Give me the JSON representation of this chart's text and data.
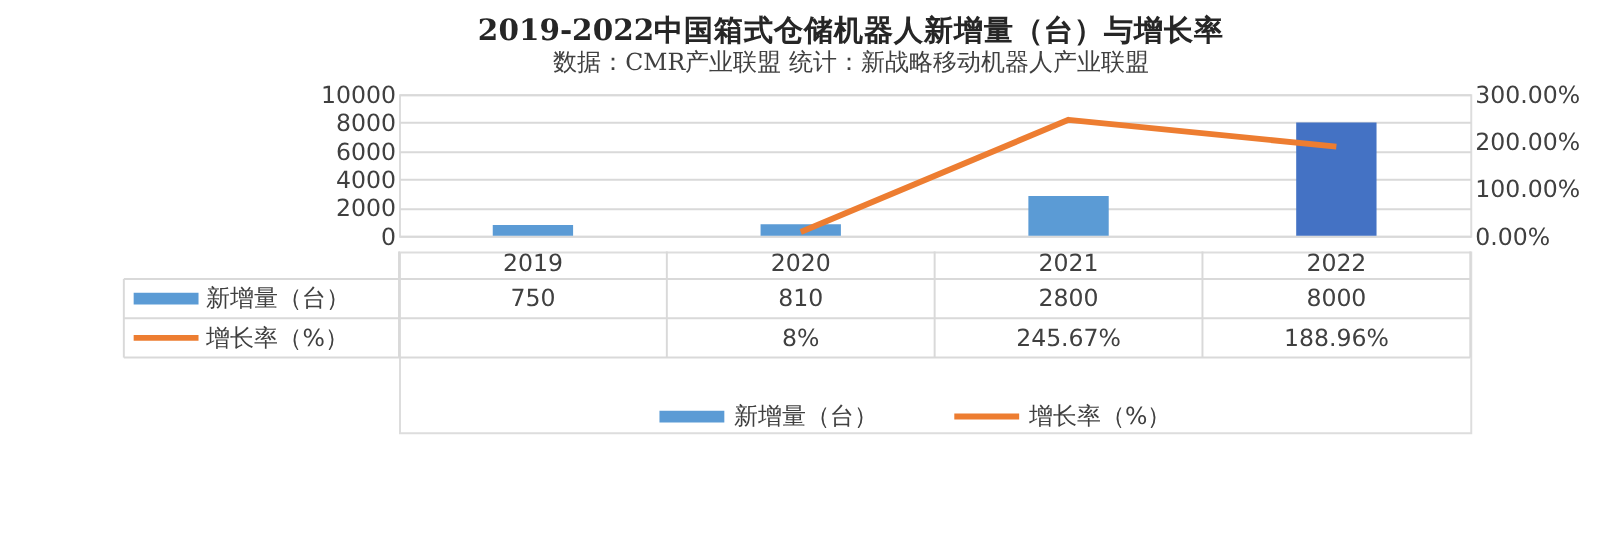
{
  "chart_data": {
    "type": "bar",
    "title": "2019-2022中国箱式仓储机器人新增量（台）与增长率",
    "subtitle": "数据：CMR产业联盟 统计：新战略移动机器人产业联盟",
    "categories": [
      "2019",
      "2020",
      "2021",
      "2022"
    ],
    "series": [
      {
        "name": "新增量（台）",
        "color": "#5b9bd5",
        "colors": [
          "#5b9bd5",
          "#5b9bd5",
          "#5b9bd5",
          "#4472c4"
        ],
        "values": [
          750,
          810,
          2800,
          8000
        ],
        "value_labels": [
          "750",
          "810",
          "2800",
          "8000"
        ]
      },
      {
        "name": "增长率（%）",
        "type": "line",
        "axis": "y2",
        "color": "#ed7d31",
        "values": [
          null,
          8,
          245.67,
          188.96
        ],
        "value_labels": [
          null,
          "8%",
          "245.67%",
          "188.96%"
        ]
      }
    ],
    "ylim": [
      0,
      10000
    ],
    "yticks": [
      0,
      2000,
      4000,
      6000,
      8000,
      10000
    ],
    "y2lim": [
      0,
      300
    ],
    "y2ticks": [
      {
        "value": 0,
        "label": "0.00%"
      },
      {
        "value": 100,
        "label": "100.00%"
      },
      {
        "value": 200,
        "label": "200.00%"
      },
      {
        "value": 300,
        "label": "300.00%"
      }
    ],
    "grid": "y",
    "legend": "bottom",
    "marker": "none",
    "line_style": "solid"
  }
}
